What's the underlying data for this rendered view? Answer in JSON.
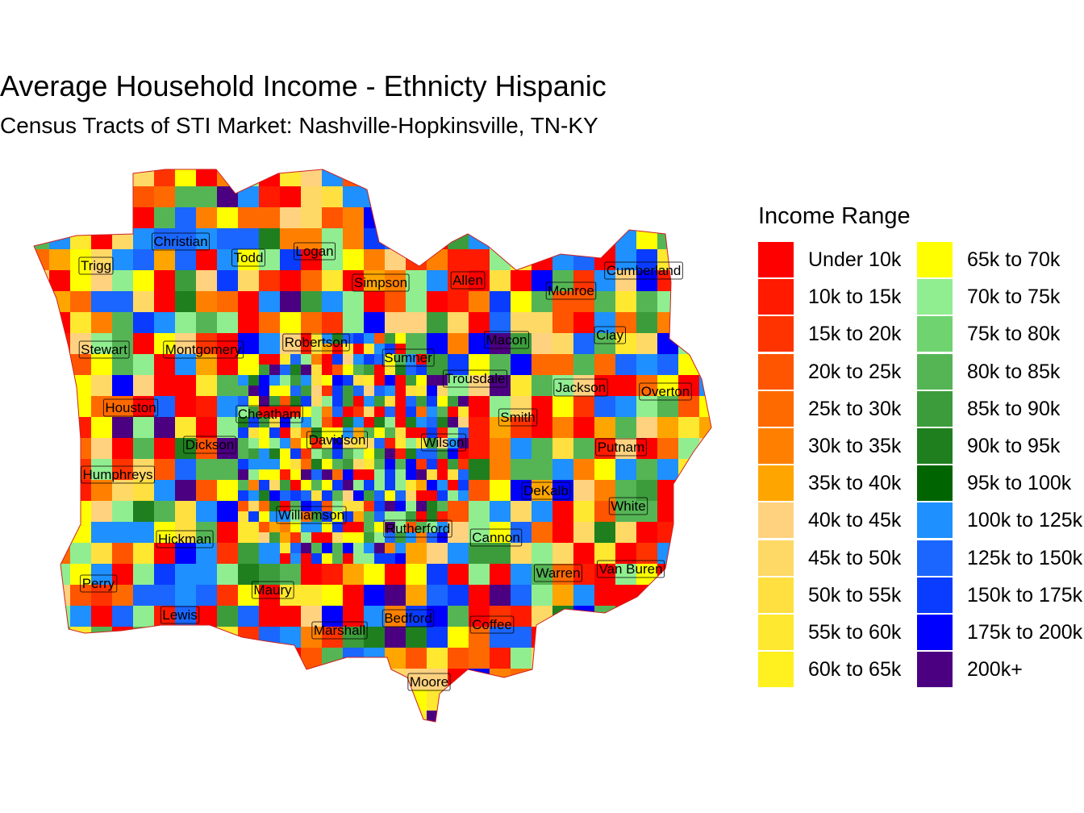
{
  "title": "Average Household Income - Ethnicty Hispanic",
  "subtitle": "Census Tracts of STI Market: Nashville-Hopkinsville, TN-KY",
  "legend": {
    "title": "Income Range",
    "items": [
      {
        "label": "Under 10k",
        "color": "#ff0000"
      },
      {
        "label": "10k to 15k",
        "color": "#ff1a00"
      },
      {
        "label": "15k to 20k",
        "color": "#ff3300"
      },
      {
        "label": "20k to 25k",
        "color": "#ff5500"
      },
      {
        "label": "25k to 30k",
        "color": "#ff6a00"
      },
      {
        "label": "30k to 35k",
        "color": "#ff8000"
      },
      {
        "label": "35k to 40k",
        "color": "#ffa500"
      },
      {
        "label": "40k to 45k",
        "color": "#ffd27f"
      },
      {
        "label": "45k to 50k",
        "color": "#ffd966"
      },
      {
        "label": "50k to 55k",
        "color": "#ffe040"
      },
      {
        "label": "55k to 60k",
        "color": "#ffe830"
      },
      {
        "label": "60k to 65k",
        "color": "#fff020"
      },
      {
        "label": "65k to 70k",
        "color": "#ffff00"
      },
      {
        "label": "70k to 75k",
        "color": "#90ee90"
      },
      {
        "label": "75k to 80k",
        "color": "#6fd36f"
      },
      {
        "label": "80k to 85k",
        "color": "#55b555"
      },
      {
        "label": "85k to 90k",
        "color": "#3c9c3c"
      },
      {
        "label": "90k to 95k",
        "color": "#1f7f1f"
      },
      {
        "label": "95k to 100k",
        "color": "#006400"
      },
      {
        "label": "100k to 125k",
        "color": "#1e90ff"
      },
      {
        "label": "125k to 150k",
        "color": "#1a66ff"
      },
      {
        "label": "150k to 175k",
        "color": "#0a3cff"
      },
      {
        "label": "175k to 200k",
        "color": "#0000ff"
      },
      {
        "label": "200k+",
        "color": "#4b0082"
      }
    ]
  },
  "counties": [
    {
      "name": "Christian"
    },
    {
      "name": "Todd"
    },
    {
      "name": "Logan"
    },
    {
      "name": "Trigg"
    },
    {
      "name": "Simpson"
    },
    {
      "name": "Allen"
    },
    {
      "name": "Monroe"
    },
    {
      "name": "Cumberland"
    },
    {
      "name": "Stewart"
    },
    {
      "name": "Montgomery"
    },
    {
      "name": "Robertson"
    },
    {
      "name": "Sumner"
    },
    {
      "name": "Macon"
    },
    {
      "name": "Clay"
    },
    {
      "name": "Trousdale"
    },
    {
      "name": "Jackson"
    },
    {
      "name": "Overton"
    },
    {
      "name": "Houston"
    },
    {
      "name": "Cheatham"
    },
    {
      "name": "Smith"
    },
    {
      "name": "Davidson"
    },
    {
      "name": "Wilson"
    },
    {
      "name": "Dickson"
    },
    {
      "name": "Putnam"
    },
    {
      "name": "Humphreys"
    },
    {
      "name": "DeKalb"
    },
    {
      "name": "White"
    },
    {
      "name": "Williamson"
    },
    {
      "name": "Rutherford"
    },
    {
      "name": "Cannon"
    },
    {
      "name": "Hickman"
    },
    {
      "name": "Warren"
    },
    {
      "name": "Van Buren"
    },
    {
      "name": "Perry"
    },
    {
      "name": "Maury"
    },
    {
      "name": "Lewis"
    },
    {
      "name": "Bedford"
    },
    {
      "name": "Coffee"
    },
    {
      "name": "Marshall"
    },
    {
      "name": "Moore"
    }
  ]
}
